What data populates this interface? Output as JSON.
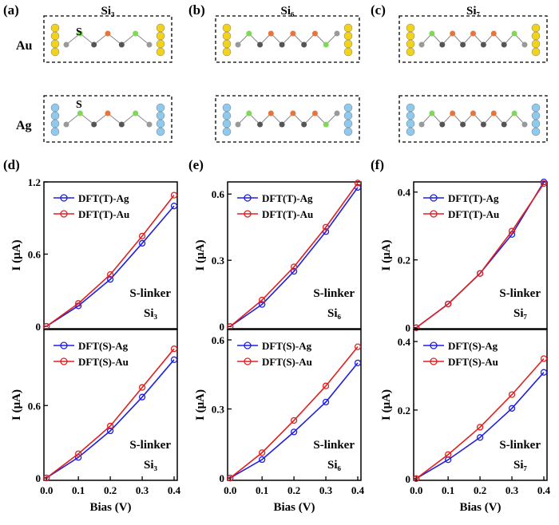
{
  "structures": {
    "panels": [
      {
        "label": "(a)",
        "title": "Si₃"
      },
      {
        "label": "(b)",
        "title": "Si₆"
      },
      {
        "label": "(c)",
        "title": "Si₇"
      }
    ],
    "rows": [
      "Au",
      "Ag"
    ],
    "sulfur_label": "S"
  },
  "panel_labels": [
    "(d)",
    "(e)",
    "(f)"
  ],
  "chart_data": [
    {
      "type": "line",
      "x": [
        0,
        0.1,
        0.2,
        0.3,
        0.4
      ],
      "xlim": [
        -0.008,
        0.41
      ],
      "ylim": [
        -0.02,
        1.2
      ],
      "yticks": [
        0,
        0.6,
        1.2
      ],
      "ylabel": "I (μA)",
      "annotations": [
        "S-linker",
        "Si₃"
      ],
      "series": [
        {
          "name": "DFT(T)-Ag",
          "color": "#1f1fe0",
          "values": [
            0,
            0.17,
            0.39,
            0.69,
            1.0
          ]
        },
        {
          "name": "DFT(T)-Au",
          "color": "#e01f1f",
          "values": [
            0,
            0.19,
            0.43,
            0.75,
            1.09
          ]
        }
      ]
    },
    {
      "type": "line",
      "x": [
        0,
        0.1,
        0.2,
        0.3,
        0.4
      ],
      "xlim": [
        -0.008,
        0.41
      ],
      "ylim": [
        -0.01,
        0.655
      ],
      "yticks": [
        0,
        0.3,
        0.6
      ],
      "ylabel": "I (μA)",
      "annotations": [
        "S-linker",
        "Si₆"
      ],
      "series": [
        {
          "name": "DFT(T)-Ag",
          "color": "#1f1fe0",
          "values": [
            0,
            0.1,
            0.25,
            0.43,
            0.63
          ]
        },
        {
          "name": "DFT(T)-Au",
          "color": "#e01f1f",
          "values": [
            0,
            0.12,
            0.27,
            0.45,
            0.65
          ]
        }
      ]
    },
    {
      "type": "line",
      "x": [
        0,
        0.1,
        0.2,
        0.3,
        0.4
      ],
      "xlim": [
        -0.008,
        0.41
      ],
      "ylim": [
        -0.003,
        0.43
      ],
      "yticks": [
        0,
        0.2,
        0.4
      ],
      "ylabel": "I (μA)",
      "annotations": [
        "S-linker",
        "Si₇"
      ],
      "series": [
        {
          "name": "DFT(T)-Ag",
          "color": "#1f1fe0",
          "values": [
            0,
            0.07,
            0.16,
            0.275,
            0.43
          ]
        },
        {
          "name": "DFT(T)-Au",
          "color": "#e01f1f",
          "values": [
            0,
            0.07,
            0.16,
            0.285,
            0.425
          ]
        }
      ]
    },
    {
      "type": "line",
      "x": [
        0,
        0.1,
        0.2,
        0.3,
        0.4
      ],
      "xlim": [
        -0.008,
        0.41
      ],
      "ylim": [
        -0.02,
        1.23
      ],
      "xticks": [
        {
          "value": 0,
          "label": "0.0"
        },
        0.1,
        0.2,
        0.3,
        0.4
      ],
      "yticks": [
        0,
        0.6
      ],
      "xlabel": "Bias (V)",
      "ylabel": "I (μA)",
      "annotations": [
        "S-linker",
        "Si₃"
      ],
      "series": [
        {
          "name": "DFT(S)-Ag",
          "color": "#1f1fe0",
          "values": [
            0,
            0.17,
            0.39,
            0.67,
            0.98
          ]
        },
        {
          "name": "DFT(S)-Au",
          "color": "#e01f1f",
          "values": [
            0,
            0.2,
            0.43,
            0.75,
            1.07
          ]
        }
      ]
    },
    {
      "type": "line",
      "x": [
        0,
        0.1,
        0.2,
        0.3,
        0.4
      ],
      "xlim": [
        -0.008,
        0.41
      ],
      "ylim": [
        -0.01,
        0.645
      ],
      "xticks": [
        {
          "value": 0,
          "label": "0.0"
        },
        0.1,
        0.2,
        0.3,
        0.4
      ],
      "yticks": [
        0,
        0.3,
        0.6
      ],
      "xlabel": "Bias (V)",
      "ylabel": "I (μA)",
      "annotations": [
        "S-linker",
        "Si₆"
      ],
      "series": [
        {
          "name": "DFT(S)-Ag",
          "color": "#1f1fe0",
          "values": [
            0,
            0.08,
            0.2,
            0.33,
            0.5
          ]
        },
        {
          "name": "DFT(S)-Au",
          "color": "#e01f1f",
          "values": [
            0,
            0.11,
            0.25,
            0.4,
            0.57
          ]
        }
      ]
    },
    {
      "type": "line",
      "x": [
        0,
        0.1,
        0.2,
        0.3,
        0.4
      ],
      "xlim": [
        -0.008,
        0.41
      ],
      "ylim": [
        -0.005,
        0.435
      ],
      "xticks": [
        {
          "value": 0,
          "label": "0.0"
        },
        0.1,
        0.2,
        0.3,
        0.4
      ],
      "yticks": [
        0,
        0.2,
        0.4
      ],
      "xlabel": "Bias (V)",
      "ylabel": "I (μA)",
      "annotations": [
        "S-linker",
        "Si₇"
      ],
      "series": [
        {
          "name": "DFT(S)-Ag",
          "color": "#1f1fe0",
          "values": [
            0,
            0.055,
            0.12,
            0.205,
            0.31
          ]
        },
        {
          "name": "DFT(S)-Au",
          "color": "#e01f1f",
          "values": [
            0,
            0.07,
            0.15,
            0.245,
            0.35
          ]
        }
      ]
    }
  ]
}
